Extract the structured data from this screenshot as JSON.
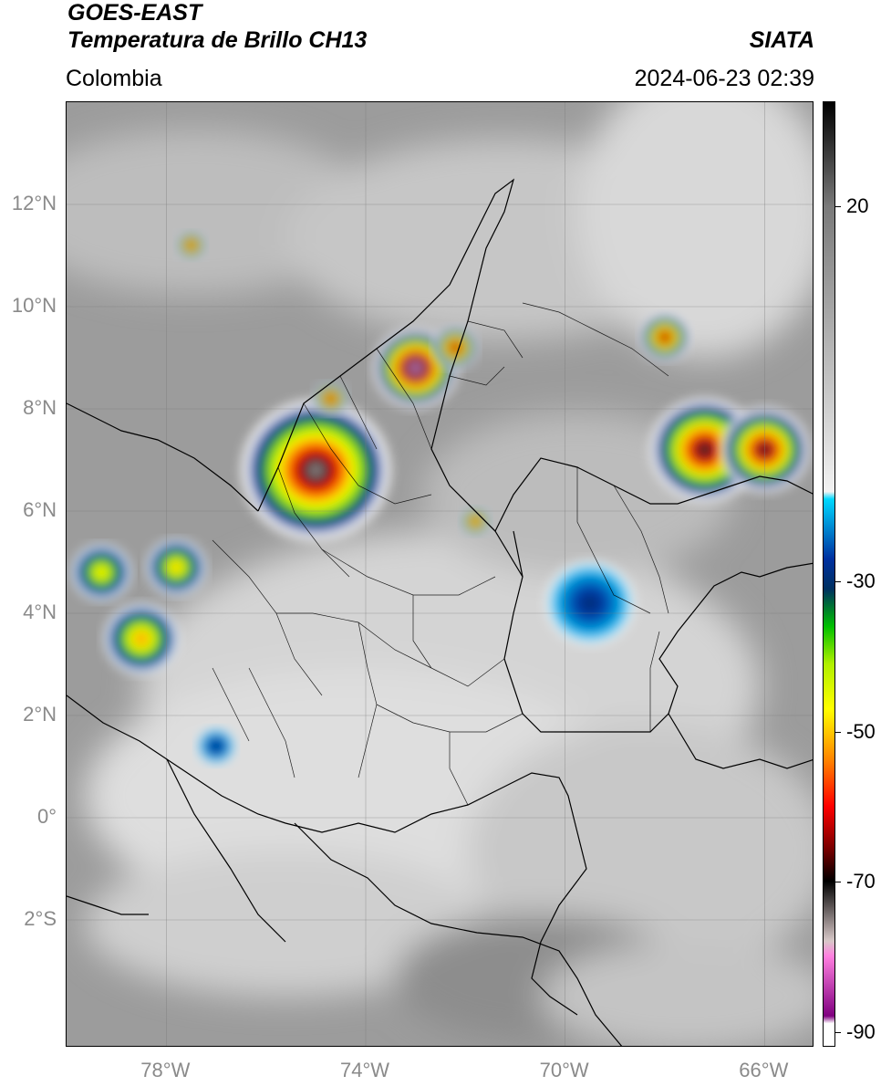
{
  "header": {
    "satellite": "GOES-EAST",
    "product": "Temperatura de Brillo CH13",
    "region": "Colombia",
    "brand": "SIATA",
    "datetime": "2024-06-23 02:39"
  },
  "map": {
    "lon_range": [
      -80,
      -65
    ],
    "lat_range": [
      -4.5,
      14.0
    ],
    "lat_ticks": [
      {
        "value": 12,
        "label": "12°N"
      },
      {
        "value": 10,
        "label": "10°N"
      },
      {
        "value": 8,
        "label": "8°N"
      },
      {
        "value": 6,
        "label": "6°N"
      },
      {
        "value": 4,
        "label": "4°N"
      },
      {
        "value": 2,
        "label": "2°N"
      },
      {
        "value": 0,
        "label": "0°"
      },
      {
        "value": -2,
        "label": "2°S"
      }
    ],
    "lon_ticks": [
      {
        "value": -78,
        "label": "78°W"
      },
      {
        "value": -74,
        "label": "74°W"
      },
      {
        "value": -70,
        "label": "70°W"
      },
      {
        "value": -66,
        "label": "66°W"
      }
    ],
    "grid": true,
    "colors": {
      "ocean_gray": "#9a9a9a",
      "land_gray": "#b8b8b8",
      "cold_cloud": "#e6e6e6",
      "border": "#000000"
    }
  },
  "colorbar": {
    "units_range": [
      -92,
      34
    ],
    "ticks": [
      {
        "value": 20,
        "label": "20"
      },
      {
        "value": -30,
        "label": "-30"
      },
      {
        "value": -50,
        "label": "-50"
      },
      {
        "value": -70,
        "label": "-70"
      },
      {
        "value": -90,
        "label": "-90"
      }
    ],
    "stops": [
      {
        "v": 34,
        "c": "#000000"
      },
      {
        "v": 20,
        "c": "#7a7a7a"
      },
      {
        "v": -18,
        "c": "#f2f2f2"
      },
      {
        "v": -19,
        "c": "#00d8ff"
      },
      {
        "v": -27,
        "c": "#0030a0"
      },
      {
        "v": -31,
        "c": "#003060"
      },
      {
        "v": -36,
        "c": "#00c000"
      },
      {
        "v": -41,
        "c": "#b0f000"
      },
      {
        "v": -47,
        "c": "#ffff00"
      },
      {
        "v": -54,
        "c": "#ff8000"
      },
      {
        "v": -60,
        "c": "#ff0000"
      },
      {
        "v": -66,
        "c": "#700000"
      },
      {
        "v": -70,
        "c": "#000000"
      },
      {
        "v": -78,
        "c": "#d8c8c8"
      },
      {
        "v": -80,
        "c": "#ff80e0"
      },
      {
        "v": -88,
        "c": "#800080"
      },
      {
        "v": -89,
        "c": "#ffffff"
      }
    ]
  },
  "storms": [
    {
      "lon": -75.0,
      "lat": 6.8,
      "r": 1.5,
      "peak": -75
    },
    {
      "lon": -73.0,
      "lat": 8.8,
      "r": 0.85,
      "peak": -82
    },
    {
      "lon": -72.2,
      "lat": 9.2,
      "r": 0.45,
      "peak": -72
    },
    {
      "lon": -74.7,
      "lat": 8.2,
      "r": 0.35,
      "peak": -72
    },
    {
      "lon": -67.2,
      "lat": 7.2,
      "r": 1.1,
      "peak": -72
    },
    {
      "lon": -66.0,
      "lat": 7.2,
      "r": 0.9,
      "peak": -72
    },
    {
      "lon": -68.0,
      "lat": 9.4,
      "r": 0.5,
      "peak": -70
    },
    {
      "lon": -79.3,
      "lat": 4.8,
      "r": 0.6,
      "peak": -50
    },
    {
      "lon": -78.5,
      "lat": 3.5,
      "r": 0.75,
      "peak": -55
    },
    {
      "lon": -77.8,
      "lat": 4.9,
      "r": 0.6,
      "peak": -52
    },
    {
      "lon": -71.8,
      "lat": 5.8,
      "r": 0.3,
      "peak": -68
    },
    {
      "lon": -77.0,
      "lat": 1.4,
      "r": 0.4,
      "peak": -30
    },
    {
      "lon": -69.5,
      "lat": 4.2,
      "r": 0.9,
      "peak": -30
    },
    {
      "lon": -77.5,
      "lat": 11.2,
      "r": 0.3,
      "peak": -70
    }
  ]
}
